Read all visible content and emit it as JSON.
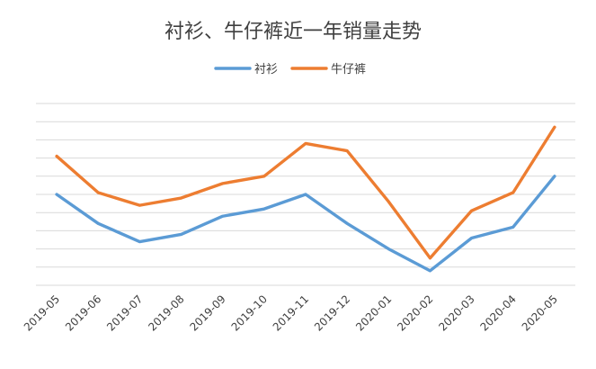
{
  "chart_data": {
    "type": "line",
    "title": "衬衫、牛仔裤近一年销量走势",
    "xlabel": "",
    "ylabel": "",
    "categories": [
      "2019-05",
      "2019-06",
      "2019-07",
      "2019-08",
      "2019-09",
      "2019-10",
      "2019-11",
      "2019-12",
      "2020-01",
      "2020-02",
      "2020-03",
      "2020-04",
      "2020-05"
    ],
    "ylim": [
      0,
      100
    ],
    "y_ticks_visible": false,
    "grid": true,
    "legend_position": "top-center",
    "series": [
      {
        "name": "衬衫",
        "color": "#5b9bd5",
        "values": [
          50,
          34,
          24,
          28,
          38,
          42,
          50,
          34,
          20,
          8,
          26,
          32,
          60
        ]
      },
      {
        "name": "牛仔裤",
        "color": "#ed7d31",
        "values": [
          71,
          51,
          44,
          48,
          56,
          60,
          78,
          74,
          46,
          15,
          41,
          51,
          87
        ]
      }
    ]
  }
}
